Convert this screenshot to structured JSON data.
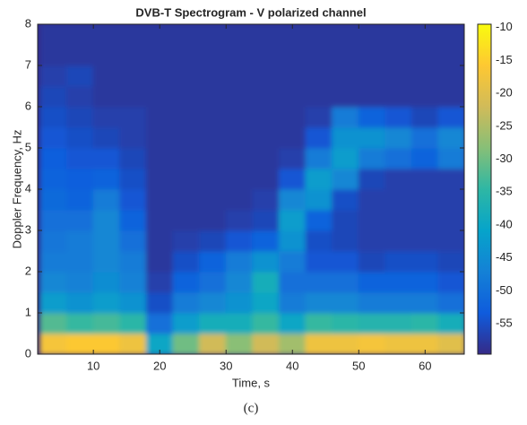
{
  "chart_data": {
    "type": "heatmap",
    "title": "DVB-T Spectrogram - V polarized channel",
    "x_label": "Time, s",
    "y_label": "Doppler Frequency, Hz",
    "caption": "(c)",
    "x": [
      4,
      8,
      12,
      16,
      20,
      24,
      28,
      32,
      36,
      40,
      44,
      48,
      52,
      56,
      60,
      64
    ],
    "y": [
      0.25,
      0.75,
      1.25,
      1.75,
      2.25,
      2.75,
      3.25,
      3.75,
      4.25,
      4.75,
      5.25,
      5.75,
      6.25,
      6.75,
      7.25,
      7.75
    ],
    "z": [
      [
        -17,
        -16,
        -16,
        -18,
        -40,
        -30,
        -22,
        -28,
        -22,
        -26,
        -18,
        -18,
        -17,
        -18,
        -18,
        -20
      ],
      [
        -32,
        -34,
        -33,
        -35,
        -50,
        -42,
        -38,
        -38,
        -34,
        -40,
        -34,
        -35,
        -36,
        -36,
        -35,
        -38
      ],
      [
        -42,
        -44,
        -42,
        -44,
        -55,
        -48,
        -46,
        -44,
        -40,
        -48,
        -46,
        -46,
        -48,
        -48,
        -48,
        -50
      ],
      [
        -46,
        -47,
        -45,
        -47,
        -57,
        -52,
        -50,
        -46,
        -38,
        -50,
        -50,
        -50,
        -52,
        -52,
        -52,
        -54
      ],
      [
        -48,
        -48,
        -46,
        -48,
        -58,
        -55,
        -52,
        -48,
        -44,
        -48,
        -54,
        -54,
        -56,
        -55,
        -55,
        -56
      ],
      [
        -49,
        -48,
        -46,
        -50,
        -58,
        -57,
        -56,
        -54,
        -52,
        -44,
        -55,
        -56,
        -57,
        -57,
        -57,
        -57
      ],
      [
        -50,
        -50,
        -46,
        -52,
        -58,
        -58,
        -58,
        -57,
        -56,
        -42,
        -52,
        -56,
        -57,
        -57,
        -57,
        -57
      ],
      [
        -51,
        -52,
        -48,
        -54,
        -58,
        -58,
        -58,
        -58,
        -57,
        -46,
        -44,
        -55,
        -57,
        -57,
        -57,
        -57
      ],
      [
        -52,
        -53,
        -52,
        -55,
        -58,
        -58,
        -58,
        -58,
        -58,
        -54,
        -42,
        -46,
        -56,
        -57,
        -57,
        -57
      ],
      [
        -53,
        -54,
        -54,
        -56,
        -58,
        -58,
        -58,
        -58,
        -58,
        -57,
        -48,
        -42,
        -48,
        -50,
        -52,
        -48
      ],
      [
        -54,
        -55,
        -56,
        -57,
        -58,
        -58,
        -58,
        -58,
        -58,
        -58,
        -54,
        -44,
        -44,
        -46,
        -50,
        -46
      ],
      [
        -55,
        -56,
        -57,
        -57,
        -58,
        -58,
        -58,
        -58,
        -58,
        -58,
        -57,
        -48,
        -52,
        -54,
        -56,
        -54
      ],
      [
        -56,
        -57,
        -58,
        -58,
        -58,
        -58,
        -58,
        -58,
        -58,
        -58,
        -58,
        -58,
        -58,
        -58,
        -58,
        -58
      ],
      [
        -57,
        -56,
        -58,
        -58,
        -58,
        -58,
        -58,
        -58,
        -58,
        -58,
        -58,
        -58,
        -58,
        -58,
        -58,
        -58
      ],
      [
        -58,
        -58,
        -58,
        -58,
        -58,
        -58,
        -58,
        -58,
        -58,
        -58,
        -58,
        -58,
        -58,
        -58,
        -58,
        -58
      ],
      [
        -58,
        -58,
        -58,
        -58,
        -58,
        -58,
        -58,
        -58,
        -58,
        -58,
        -58,
        -58,
        -58,
        -58,
        -58,
        -58
      ]
    ],
    "xlim": [
      1.6,
      65.9
    ],
    "xticks": [
      10,
      20,
      30,
      40,
      50,
      60
    ],
    "ylim": [
      0,
      8
    ],
    "yticks": [
      0,
      1,
      2,
      3,
      4,
      5,
      6,
      7,
      8
    ],
    "clim": [
      -59.6,
      -9.5
    ],
    "cticks": [
      -55,
      -50,
      -45,
      -40,
      -35,
      -30,
      -25,
      -20,
      -15,
      -10
    ],
    "colormap": [
      "#352a87",
      "#0f5cdd",
      "#1481d6",
      "#06a4ca",
      "#2eb7a4",
      "#87bf77",
      "#d1bb59",
      "#fec832",
      "#f9fb0e"
    ]
  }
}
